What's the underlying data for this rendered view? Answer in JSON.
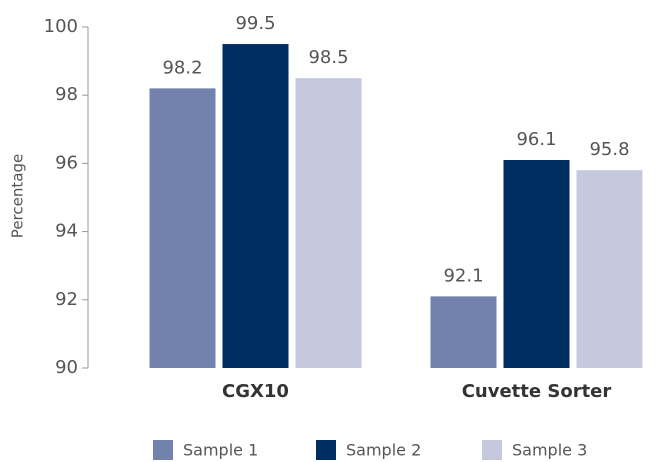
{
  "chart_data": {
    "type": "bar",
    "y_label": "Percentage",
    "categories": [
      "CGX10",
      "Cuvette Sorter"
    ],
    "series": [
      {
        "name": "Sample 1",
        "color": "#7282ad",
        "values": [
          98.2,
          92.1
        ]
      },
      {
        "name": "Sample 2",
        "color": "#002d62",
        "values": [
          99.5,
          96.1
        ]
      },
      {
        "name": "Sample 3",
        "color": "#c5c9de",
        "values": [
          98.5,
          95.8
        ]
      }
    ],
    "ylim": [
      90,
      100
    ],
    "yticks": [
      90,
      92,
      94,
      96,
      98,
      100
    ],
    "legend": "bottom"
  }
}
